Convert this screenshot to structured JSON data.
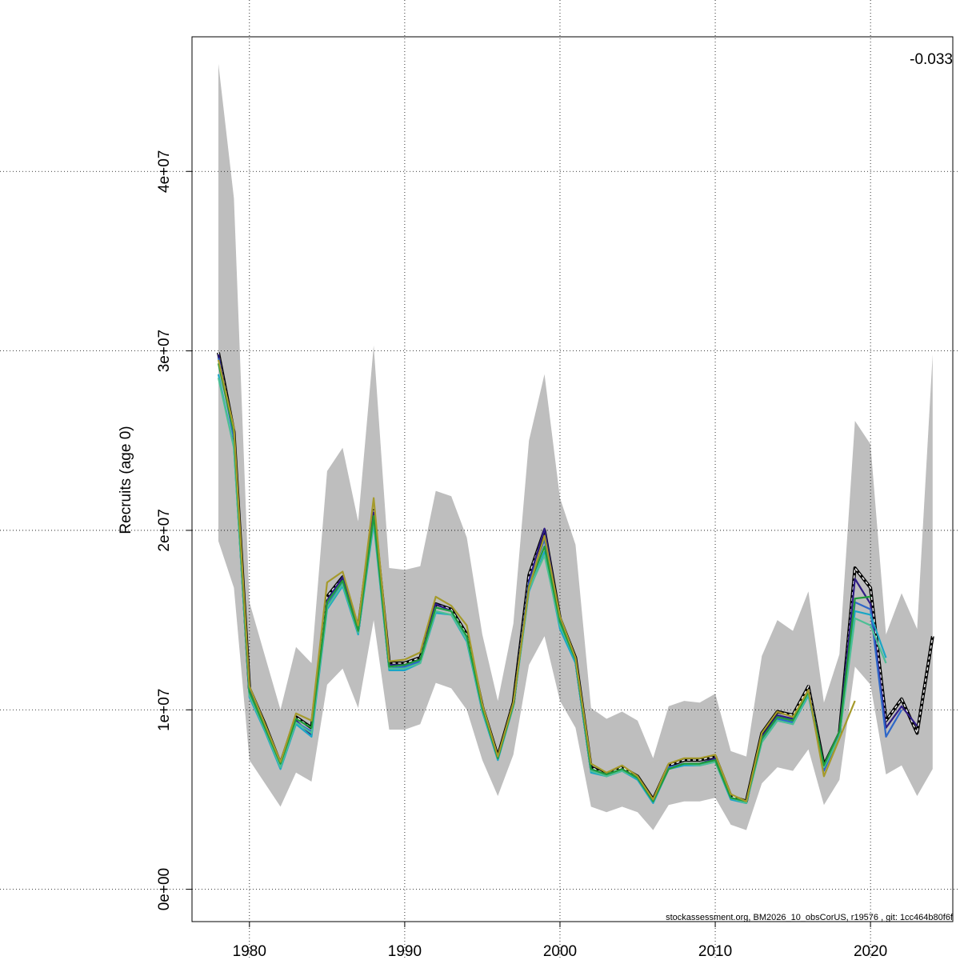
{
  "chart_data": {
    "type": "line",
    "ylabel": "Recruits (age 0)",
    "xlim": [
      1976.3,
      2025.3
    ],
    "ylim": [
      -1800000,
      47500000
    ],
    "x_ticks": [
      1980,
      1990,
      2000,
      2010,
      2020
    ],
    "x_tick_labels": [
      "1980",
      "1990",
      "2000",
      "2010",
      "2020"
    ],
    "y_ticks": [
      0,
      10000000,
      20000000,
      30000000,
      40000000
    ],
    "y_tick_labels": [
      "0e+00",
      "1e+07",
      "2e+07",
      "3e+07",
      "4e+07"
    ],
    "grid": true,
    "corner_annotation": "-0.033",
    "footer": "stockassessment.org, BM2026_10_obsCorUS, r19576 , git: 1cc464b80f6f",
    "band_color": "#bebebe",
    "band_years": [
      1978,
      1979,
      1980,
      1981,
      1982,
      1983,
      1984,
      1985,
      1986,
      1987,
      1988,
      1989,
      1990,
      1991,
      1992,
      1993,
      1994,
      1995,
      1996,
      1997,
      1998,
      1999,
      2000,
      2001,
      2002,
      2003,
      2004,
      2005,
      2006,
      2007,
      2008,
      2009,
      2010,
      2011,
      2012,
      2013,
      2014,
      2015,
      2016,
      2017,
      2018,
      2019,
      2020,
      2021,
      2022,
      2023,
      2024
    ],
    "band_upper": [
      46000000,
      38500000,
      16000000,
      13000000,
      10000000,
      13500000,
      12600000,
      23300000,
      24600000,
      20500000,
      30300000,
      17900000,
      17800000,
      18000000,
      22200000,
      21900000,
      19600000,
      14200000,
      10500000,
      14800000,
      25000000,
      28700000,
      21800000,
      19200000,
      10100000,
      9500000,
      9900000,
      9400000,
      7300000,
      10200000,
      10500000,
      10400000,
      10900000,
      7700000,
      7400000,
      13000000,
      15000000,
      14400000,
      16600000,
      10400000,
      13100000,
      26100000,
      24800000,
      14200000,
      16500000,
      14500000,
      29800000
    ],
    "band_lower": [
      19400000,
      16800000,
      7200000,
      5900000,
      4600000,
      6500000,
      6000000,
      11400000,
      12300000,
      10100000,
      15000000,
      8900000,
      8900000,
      9200000,
      11500000,
      11200000,
      10000000,
      7200000,
      5200000,
      7500000,
      12500000,
      14100000,
      10500000,
      9000000,
      4600000,
      4300000,
      4600000,
      4300000,
      3300000,
      4700000,
      4900000,
      4900000,
      5100000,
      3600000,
      3300000,
      5900000,
      6800000,
      6600000,
      7800000,
      4700000,
      6100000,
      12400000,
      11400000,
      6400000,
      6900000,
      5200000,
      6700000
    ],
    "series": [
      {
        "style": "base-dashed",
        "color": "#000000",
        "x": [
          1978,
          1979,
          1980,
          1981,
          1982,
          1983,
          1984,
          1985,
          1986,
          1987,
          1988,
          1989,
          1990,
          1991,
          1992,
          1993,
          1994,
          1995,
          1996,
          1997,
          1998,
          1999,
          2000,
          2001,
          2002,
          2003,
          2004,
          2005,
          2006,
          2007,
          2008,
          2009,
          2010,
          2011,
          2012,
          2013,
          2014,
          2015,
          2016,
          2017,
          2018,
          2019,
          2020,
          2021,
          2022,
          2023,
          2024
        ],
        "values": [
          29900000,
          25500000,
          11200000,
          9200000,
          7000000,
          9600000,
          9000000,
          16300000,
          17400000,
          14500000,
          21100000,
          12600000,
          12600000,
          12900000,
          15900000,
          15600000,
          14200000,
          10200000,
          7400000,
          10400000,
          17500000,
          20000000,
          15100000,
          12900000,
          6800000,
          6400000,
          6800000,
          6300000,
          5000000,
          6900000,
          7200000,
          7200000,
          7400000,
          5200000,
          4900000,
          8700000,
          9900000,
          9700000,
          11300000,
          6900000,
          8700000,
          17900000,
          16800000,
          9400000,
          10600000,
          8700000,
          14100000
        ]
      },
      {
        "style": "peel",
        "color": "#2f1d85",
        "x": [
          1978,
          1979,
          1980,
          1981,
          1982,
          1983,
          1984,
          1985,
          1986,
          1987,
          1988,
          1989,
          1990,
          1991,
          1992,
          1993,
          1994,
          1995,
          1996,
          1997,
          1998,
          1999,
          2000,
          2001,
          2002,
          2003,
          2004,
          2005,
          2006,
          2007,
          2008,
          2009,
          2010,
          2011,
          2012,
          2013,
          2014,
          2015,
          2016,
          2017,
          2018,
          2019,
          2020,
          2021,
          2022,
          2023
        ],
        "values": [
          29800000,
          25300000,
          11100000,
          9100000,
          6900000,
          9400000,
          8600000,
          16100000,
          17400000,
          14500000,
          21000000,
          12500000,
          12500000,
          12800000,
          15900000,
          15500000,
          14000000,
          10100000,
          7300000,
          10300000,
          17200000,
          20100000,
          15000000,
          12800000,
          6700000,
          6300000,
          6700000,
          6200000,
          4900000,
          6800000,
          7000000,
          7000000,
          7300000,
          5100000,
          4800000,
          8500000,
          9700000,
          9500000,
          11100000,
          6900000,
          8800000,
          17300000,
          15900000,
          9000000,
          10200000,
          9100000
        ]
      },
      {
        "style": "peel",
        "color": "#2e67c9",
        "x": [
          1978,
          1979,
          1980,
          1981,
          1982,
          1983,
          1984,
          1985,
          1986,
          1987,
          1988,
          1989,
          1990,
          1991,
          1992,
          1993,
          1994,
          1995,
          1996,
          1997,
          1998,
          1999,
          2000,
          2001,
          2002,
          2003,
          2004,
          2005,
          2006,
          2007,
          2008,
          2009,
          2010,
          2011,
          2012,
          2013,
          2014,
          2015,
          2016,
          2017,
          2018,
          2019,
          2020,
          2021,
          2022
        ],
        "values": [
          29600000,
          25100000,
          10900000,
          9000000,
          6800000,
          9300000,
          8800000,
          15800000,
          17100000,
          14300000,
          20700000,
          12300000,
          12400000,
          12700000,
          15700000,
          15500000,
          13900000,
          10000000,
          7300000,
          10300000,
          17000000,
          19500000,
          14800000,
          12700000,
          6600000,
          6300000,
          6600000,
          6200000,
          4900000,
          6800000,
          7000000,
          7000000,
          7200000,
          5100000,
          4800000,
          8300000,
          9500000,
          9300000,
          10900000,
          6600000,
          8600000,
          16000000,
          15600000,
          8500000,
          10000000
        ]
      },
      {
        "style": "peel",
        "color": "#1aa6c6",
        "x": [
          1978,
          1979,
          1980,
          1981,
          1982,
          1983,
          1984,
          1985,
          1986,
          1987,
          1988,
          1989,
          1990,
          1991,
          1992,
          1993,
          1994,
          1995,
          1996,
          1997,
          1998,
          1999,
          2000,
          2001,
          2002,
          2003,
          2004,
          2005,
          2006,
          2007,
          2008,
          2009,
          2010,
          2011,
          2012,
          2013,
          2014,
          2015,
          2016,
          2017,
          2018,
          2019,
          2020,
          2021
        ],
        "values": [
          28700000,
          24600000,
          10700000,
          8800000,
          6700000,
          9200000,
          8500000,
          15600000,
          16900000,
          14200000,
          20400000,
          12200000,
          12200000,
          12600000,
          15400000,
          15300000,
          13800000,
          9900000,
          7200000,
          10200000,
          16600000,
          18800000,
          14500000,
          12600000,
          6500000,
          6300000,
          6600000,
          6100000,
          4800000,
          6700000,
          6900000,
          6900000,
          7100000,
          5000000,
          4800000,
          8200000,
          9400000,
          9200000,
          10800000,
          6800000,
          8500000,
          15500000,
          15300000,
          12900000
        ]
      },
      {
        "style": "peel",
        "color": "#4dbf95",
        "x": [
          1978,
          1979,
          1980,
          1981,
          1982,
          1983,
          1984,
          1985,
          1986,
          1987,
          1988,
          1989,
          1990,
          1991,
          1992,
          1993,
          1994,
          1995,
          1996,
          1997,
          1998,
          1999,
          2000,
          2001,
          2002,
          2003,
          2004,
          2005,
          2006,
          2007,
          2008,
          2009,
          2010,
          2011,
          2012,
          2013,
          2014,
          2015,
          2016,
          2017,
          2018,
          2019,
          2020,
          2021
        ],
        "values": [
          28500000,
          24600000,
          10800000,
          8900000,
          6800000,
          9300000,
          8700000,
          15700000,
          17000000,
          14300000,
          20600000,
          12300000,
          12300000,
          12600000,
          15500000,
          15300000,
          13900000,
          10000000,
          7300000,
          10200000,
          16700000,
          18600000,
          14700000,
          12800000,
          6600000,
          6300000,
          6600000,
          6200000,
          4900000,
          6700000,
          7000000,
          6900000,
          7100000,
          5100000,
          4800000,
          8200000,
          9400000,
          9200000,
          10900000,
          6800000,
          8500000,
          15100000,
          14700000,
          12600000
        ]
      },
      {
        "style": "peel",
        "color": "#1f9b3c",
        "x": [
          1978,
          1979,
          1980,
          1981,
          1982,
          1983,
          1984,
          1985,
          1986,
          1987,
          1988,
          1989,
          1990,
          1991,
          1992,
          1993,
          1994,
          1995,
          1996,
          1997,
          1998,
          1999,
          2000,
          2001,
          2002,
          2003,
          2004,
          2005,
          2006,
          2007,
          2008,
          2009,
          2010,
          2011,
          2012,
          2013,
          2014,
          2015,
          2016,
          2017,
          2018,
          2019,
          2020
        ],
        "values": [
          29300000,
          25400000,
          11000000,
          9000000,
          7000000,
          9500000,
          9000000,
          16000000,
          17200000,
          14400000,
          20800000,
          12400000,
          12500000,
          12800000,
          15700000,
          15500000,
          14100000,
          10100000,
          7300000,
          10300000,
          16900000,
          19100000,
          14900000,
          12800000,
          6700000,
          6400000,
          6700000,
          6200000,
          4900000,
          6700000,
          7000000,
          7000000,
          7200000,
          5100000,
          4900000,
          8400000,
          9600000,
          9400000,
          11000000,
          6900000,
          8800000,
          16200000,
          16300000
        ]
      },
      {
        "style": "peel",
        "color": "#a59a2b",
        "x": [
          1978,
          1979,
          1980,
          1981,
          1982,
          1983,
          1984,
          1985,
          1986,
          1987,
          1988,
          1989,
          1990,
          1991,
          1992,
          1993,
          1994,
          1995,
          1996,
          1997,
          1998,
          1999,
          2000,
          2001,
          2002,
          2003,
          2004,
          2005,
          2006,
          2007,
          2008,
          2009,
          2010,
          2011,
          2012,
          2013,
          2014,
          2015,
          2016,
          2017,
          2018,
          2019
        ],
        "values": [
          29500000,
          25700000,
          11300000,
          9200000,
          7100000,
          9800000,
          9400000,
          17100000,
          17700000,
          14700000,
          21800000,
          12700000,
          12800000,
          13200000,
          16300000,
          15800000,
          14700000,
          10300000,
          7400000,
          10400000,
          16800000,
          19700000,
          15200000,
          12900000,
          7000000,
          6500000,
          6900000,
          6300000,
          5000000,
          7000000,
          7300000,
          7300000,
          7500000,
          5300000,
          4900000,
          8700000,
          9900000,
          9600000,
          11100000,
          6300000,
          8400000,
          10500000
        ]
      }
    ]
  }
}
